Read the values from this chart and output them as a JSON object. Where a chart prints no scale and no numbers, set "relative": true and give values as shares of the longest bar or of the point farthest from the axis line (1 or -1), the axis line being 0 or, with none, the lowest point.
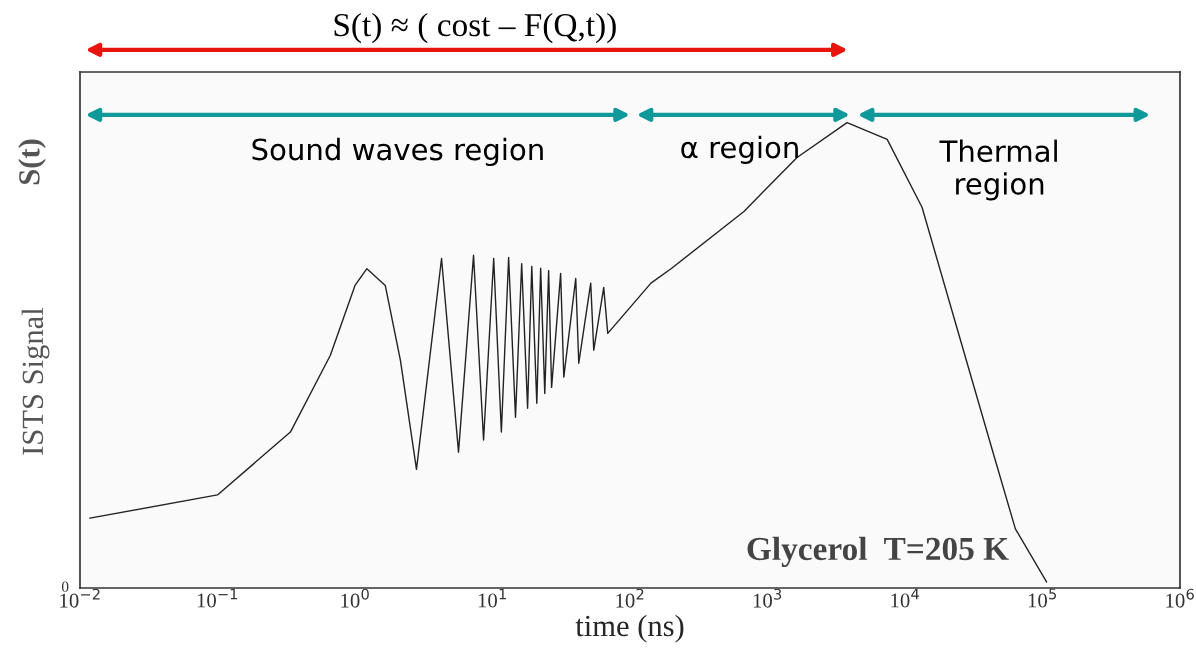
{
  "chart_data": {
    "type": "line",
    "relative": true,
    "log": "x",
    "xlabel": "time (ns)",
    "ylabel": "ISTS Signal",
    "x": [
      0.0118,
      0.1,
      0.339,
      0.662,
      1.0,
      1.22,
      1.66,
      2.14,
      2.8,
      4.26,
      5.66,
      7.28,
      8.61,
      10.2,
      11.6,
      13.1,
      14.7,
      16.3,
      18.0,
      19.3,
      21.0,
      22.4,
      24.0,
      25.6,
      26.9,
      31.3,
      33.0,
      40.3,
      42.4,
      51.8,
      54.5,
      64.4,
      68.9,
      142,
      201,
      674,
      1640,
      3790,
      7420,
      13300,
      24400,
      44700,
      63500,
      107000
    ],
    "series": [
      {
        "color": "#222222",
        "values": [
          0.15,
          0.2,
          0.335,
          0.5,
          0.65,
          0.686,
          0.65,
          0.489,
          0.255,
          0.708,
          0.292,
          0.715,
          0.318,
          0.708,
          0.335,
          0.71,
          0.367,
          0.697,
          0.386,
          0.691,
          0.397,
          0.687,
          0.418,
          0.682,
          0.431,
          0.676,
          0.453,
          0.665,
          0.483,
          0.655,
          0.511,
          0.646,
          0.547,
          0.655,
          0.687,
          0.809,
          0.925,
          1.0,
          0.964,
          0.818,
          0.549,
          0.281,
          0.127,
          0.013
        ]
      }
    ],
    "xlim": [
      0.01,
      1000000
    ],
    "xticks": [
      {
        "value": 0.01,
        "label": "10$^{−2}$"
      },
      {
        "value": 0.1,
        "label": "10$^{−1}$"
      },
      {
        "value": 1,
        "label": "10$^{0}$"
      },
      {
        "value": 10,
        "label": "10$^{1}$"
      },
      {
        "value": 100,
        "label": "10$^{2}$"
      },
      {
        "value": 1000,
        "label": "10$^{3}$"
      },
      {
        "value": 10000,
        "label": "10$^{4}$"
      },
      {
        "value": 100000,
        "label": "10$^{5}$"
      },
      {
        "value": 1000000,
        "label": "10$^{6}$"
      }
    ],
    "grid": false,
    "legend": false,
    "line_style": "solid",
    "marker": "none",
    "annotations": [
      "S(t) ≈ ( cost – F(Q,t))",
      "Sound waves region",
      "α region",
      "Thermal\nregion",
      "Glycerol  T=205 K",
      "S(t)",
      "0"
    ]
  }
}
